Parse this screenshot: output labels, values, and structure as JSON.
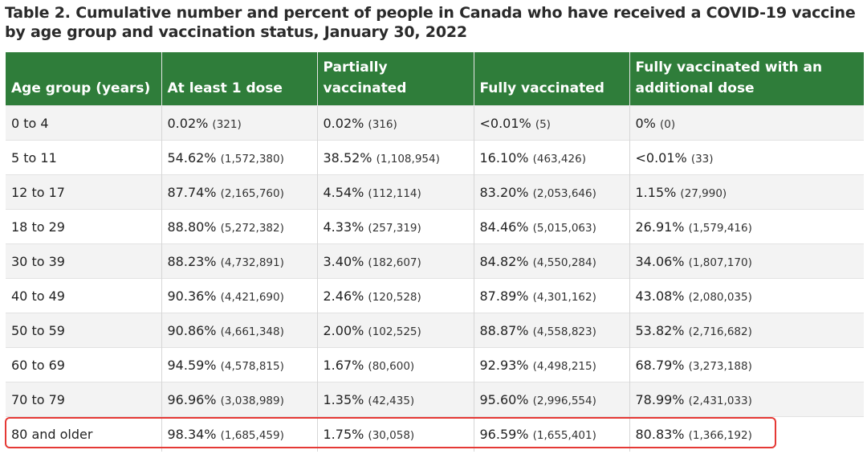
{
  "title": "Table 2. Cumulative number and percent of people in Canada who have received a COVID-19 vaccine by age group and vaccination status, January 30, 2022",
  "table": {
    "headers": [
      "Age group (years)",
      "At least 1 dose",
      "Partially vaccinated",
      "Fully vaccinated",
      "Fully vaccinated with an additional dose"
    ],
    "rows": [
      {
        "age": "0 to 4",
        "cells": [
          {
            "pct": "0.02%",
            "count": "(321)"
          },
          {
            "pct": "0.02%",
            "count": "(316)"
          },
          {
            "pct": "<0.01%",
            "count": "(5)"
          },
          {
            "pct": "0%",
            "count": "(0)"
          }
        ]
      },
      {
        "age": "5 to 11",
        "cells": [
          {
            "pct": "54.62%",
            "count": "(1,572,380)"
          },
          {
            "pct": "38.52%",
            "count": "(1,108,954)"
          },
          {
            "pct": "16.10%",
            "count": "(463,426)"
          },
          {
            "pct": "<0.01%",
            "count": "(33)"
          }
        ]
      },
      {
        "age": "12 to 17",
        "cells": [
          {
            "pct": "87.74%",
            "count": "(2,165,760)"
          },
          {
            "pct": "4.54%",
            "count": "(112,114)"
          },
          {
            "pct": "83.20%",
            "count": "(2,053,646)"
          },
          {
            "pct": "1.15%",
            "count": "(27,990)"
          }
        ]
      },
      {
        "age": "18 to 29",
        "cells": [
          {
            "pct": "88.80%",
            "count": "(5,272,382)"
          },
          {
            "pct": "4.33%",
            "count": "(257,319)"
          },
          {
            "pct": "84.46%",
            "count": "(5,015,063)"
          },
          {
            "pct": "26.91%",
            "count": "(1,579,416)"
          }
        ]
      },
      {
        "age": "30 to 39",
        "cells": [
          {
            "pct": "88.23%",
            "count": "(4,732,891)"
          },
          {
            "pct": "3.40%",
            "count": "(182,607)"
          },
          {
            "pct": "84.82%",
            "count": "(4,550,284)"
          },
          {
            "pct": "34.06%",
            "count": "(1,807,170)"
          }
        ]
      },
      {
        "age": "40 to 49",
        "cells": [
          {
            "pct": "90.36%",
            "count": "(4,421,690)"
          },
          {
            "pct": "2.46%",
            "count": "(120,528)"
          },
          {
            "pct": "87.89%",
            "count": "(4,301,162)"
          },
          {
            "pct": "43.08%",
            "count": "(2,080,035)"
          }
        ]
      },
      {
        "age": "50 to 59",
        "cells": [
          {
            "pct": "90.86%",
            "count": "(4,661,348)"
          },
          {
            "pct": "2.00%",
            "count": "(102,525)"
          },
          {
            "pct": "88.87%",
            "count": "(4,558,823)"
          },
          {
            "pct": "53.82%",
            "count": "(2,716,682)"
          }
        ]
      },
      {
        "age": "60 to 69",
        "cells": [
          {
            "pct": "94.59%",
            "count": "(4,578,815)"
          },
          {
            "pct": "1.67%",
            "count": "(80,600)"
          },
          {
            "pct": "92.93%",
            "count": "(4,498,215)"
          },
          {
            "pct": "68.79%",
            "count": "(3,273,188)"
          }
        ]
      },
      {
        "age": "70 to 79",
        "cells": [
          {
            "pct": "96.96%",
            "count": "(3,038,989)"
          },
          {
            "pct": "1.35%",
            "count": "(42,435)"
          },
          {
            "pct": "95.60%",
            "count": "(2,996,554)"
          },
          {
            "pct": "78.99%",
            "count": "(2,431,033)"
          }
        ]
      },
      {
        "age": "80 and older",
        "cells": [
          {
            "pct": "98.34%",
            "count": "(1,685,459)"
          },
          {
            "pct": "1.75%",
            "count": "(30,058)"
          },
          {
            "pct": "96.59%",
            "count": "(1,655,401)"
          },
          {
            "pct": "80.83%",
            "count": "(1,366,192)"
          }
        ]
      }
    ]
  },
  "colors": {
    "header_bg": "#2f7d3a",
    "highlight_border": "#e53935",
    "row_alt_bg": "#f3f3f3"
  }
}
